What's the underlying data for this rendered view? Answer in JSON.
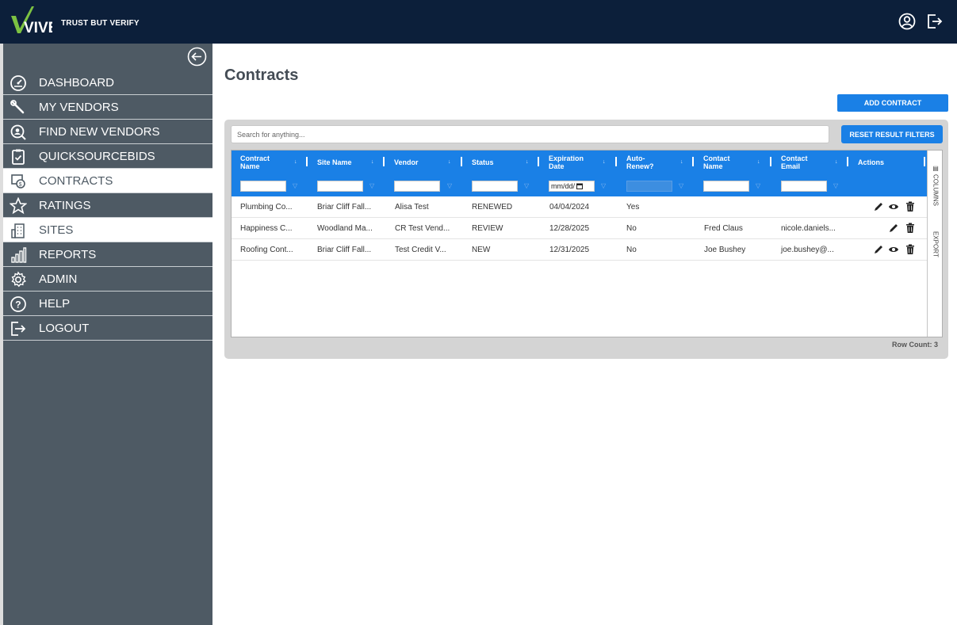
{
  "header": {
    "logo_text": "VIVE",
    "tagline": "TRUST BUT VERIFY"
  },
  "sidebar": {
    "items": [
      {
        "label": "DASHBOARD",
        "icon": "gauge-icon",
        "style": "dark"
      },
      {
        "label": "MY VENDORS",
        "icon": "wrench-icon",
        "style": "dark"
      },
      {
        "label": "FIND NEW VENDORS",
        "icon": "search-person-icon",
        "style": "dark"
      },
      {
        "label": "QUICKSOURCEBIDS",
        "icon": "clipboard-check-icon",
        "style": "dark"
      },
      {
        "label": "CONTRACTS",
        "icon": "money-document-icon",
        "style": "white"
      },
      {
        "label": "RATINGS",
        "icon": "star-icon",
        "style": "dark"
      },
      {
        "label": "SITES",
        "icon": "building-icon",
        "style": "white"
      },
      {
        "label": "REPORTS",
        "icon": "bar-chart-icon",
        "style": "dark"
      },
      {
        "label": "ADMIN",
        "icon": "gear-icon",
        "style": "dark"
      },
      {
        "label": "HELP",
        "icon": "question-icon",
        "style": "dark"
      },
      {
        "label": "LOGOUT",
        "icon": "logout-icon",
        "style": "dark"
      }
    ]
  },
  "main": {
    "title": "Contracts",
    "add_button": "ADD CONTRACT",
    "search_placeholder": "Search for anything...",
    "reset_button": "RESET RESULT FILTERS",
    "side_tabs": {
      "columns": "COLUMNS",
      "export": "EXPORT"
    },
    "date_placeholder": "mm/dd/",
    "row_count": "Row Count: 3"
  },
  "table": {
    "columns": [
      {
        "l1": "Contract",
        "l2": "Name"
      },
      {
        "l1": "Site Name",
        "l2": ""
      },
      {
        "l1": "Vendor",
        "l2": ""
      },
      {
        "l1": "Status",
        "l2": ""
      },
      {
        "l1": "Expiration",
        "l2": "Date"
      },
      {
        "l1": "Auto-",
        "l2": "Renew?"
      },
      {
        "l1": "Contact",
        "l2": "Name"
      },
      {
        "l1": "Contact",
        "l2": "Email"
      },
      {
        "l1": "Actions",
        "l2": ""
      }
    ],
    "rows": [
      {
        "contract": "Plumbing Co...",
        "site": "Briar Cliff Fall...",
        "vendor": "Alisa Test",
        "status": "RENEWED",
        "expiration": "04/04/2024",
        "auto_renew": "Yes",
        "contact_name": "",
        "contact_email": "",
        "actions": [
          "edit",
          "view",
          "delete"
        ]
      },
      {
        "contract": "Happiness C...",
        "site": "Woodland Ma...",
        "vendor": "CR Test Vend...",
        "status": "REVIEW",
        "expiration": "12/28/2025",
        "auto_renew": "No",
        "contact_name": "Fred Claus",
        "contact_email": "nicole.daniels...",
        "actions": [
          "edit",
          "delete"
        ]
      },
      {
        "contract": "Roofing Cont...",
        "site": "Briar Cliff Fall...",
        "vendor": "Test Credit V...",
        "status": "NEW",
        "expiration": "12/31/2025",
        "auto_renew": "No",
        "contact_name": "Joe Bushey",
        "contact_email": "joe.bushey@...",
        "actions": [
          "edit",
          "view",
          "delete"
        ]
      }
    ]
  },
  "colors": {
    "topbar": "#0c1f3a",
    "sidebar": "#4e5a64",
    "accent": "#1a80e6",
    "logo_green": "#7cc242"
  }
}
